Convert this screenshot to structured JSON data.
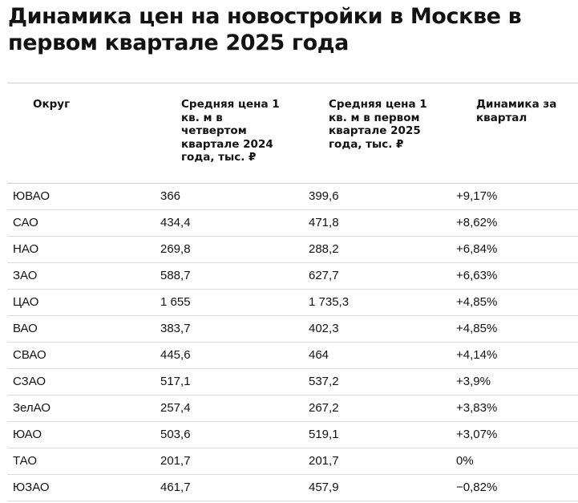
{
  "title": "Динамика цен на новостройки в Москве в первом квартале 2025 года",
  "table": {
    "headers": [
      "Округ",
      "Средняя цена 1 кв. м в четвертом квартале 2024 года, тыс. ₽",
      "Средняя цена 1 кв. м в первом квартале 2025 года, тыс. ₽",
      "Динамика за квартал"
    ],
    "rows": [
      [
        "ЮВАО",
        "366",
        "399,6",
        "+9,17%"
      ],
      [
        "САО",
        "434,4",
        "471,8",
        "+8,62%"
      ],
      [
        "НАО",
        "269,8",
        "288,2",
        "+6,84%"
      ],
      [
        "ЗАО",
        "588,7",
        "627,7",
        "+6,63%"
      ],
      [
        "ЦАО",
        "1 655",
        "1 735,3",
        "+4,85%"
      ],
      [
        "ВАО",
        "383,7",
        "402,3",
        "+4,85%"
      ],
      [
        "СВАО",
        "445,6",
        "464",
        "+4,14%"
      ],
      [
        "СЗАО",
        "517,1",
        "537,2",
        "+3,9%"
      ],
      [
        "ЗелАО",
        "257,4",
        "267,2",
        "+3,83%"
      ],
      [
        "ЮАО",
        "503,6",
        "519,1",
        "+3,07%"
      ],
      [
        "ТАО",
        "201,7",
        "201,7",
        "0%"
      ],
      [
        "ЮЗАО",
        "461,7",
        "457,9",
        "−0,82%"
      ]
    ]
  }
}
